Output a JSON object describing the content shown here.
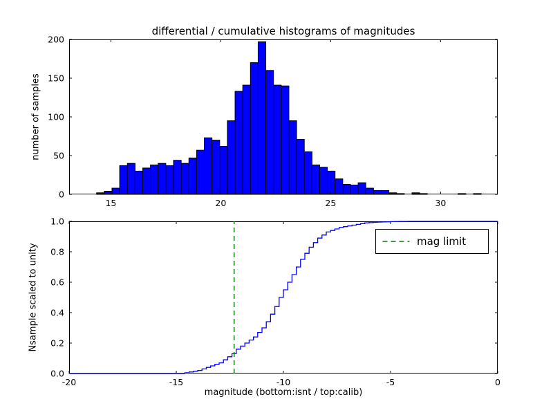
{
  "figure": {
    "background": "#ffffff",
    "frame_color": "#000000"
  },
  "chart_data": [
    {
      "type": "bar",
      "title": "differential / cumulative histograms of magnitudes",
      "ylabel": "number of samples",
      "xlabel": "",
      "xlim": [
        13.1,
        32.6
      ],
      "ylim": [
        0,
        200
      ],
      "xticks": [
        {
          "v": 15,
          "label": "15"
        },
        {
          "v": 20,
          "label": "20"
        },
        {
          "v": 25,
          "label": "25"
        },
        {
          "v": 30,
          "label": "30"
        }
      ],
      "yticks": [
        {
          "v": 0,
          "label": "0"
        },
        {
          "v": 50,
          "label": "50"
        },
        {
          "v": 100,
          "label": "100"
        },
        {
          "v": 150,
          "label": "150"
        },
        {
          "v": 200,
          "label": "200"
        }
      ],
      "bar_color": "#0000ff",
      "bar_edge_color": "#000000",
      "bin_start": 14.35,
      "bin_width": 0.35,
      "counts": [
        2,
        4,
        8,
        37,
        40,
        30,
        34,
        38,
        40,
        37,
        44,
        40,
        47,
        57,
        73,
        70,
        62,
        95,
        133,
        141,
        170,
        197,
        160,
        141,
        140,
        95,
        71,
        55,
        38,
        35,
        30,
        20,
        13,
        12,
        15,
        8,
        5,
        5,
        2,
        1,
        0,
        2,
        1,
        0,
        0,
        0,
        0,
        1,
        0,
        1
      ],
      "grid": false,
      "legend": null
    },
    {
      "type": "line",
      "step": true,
      "title": "",
      "ylabel": "Nsample scaled to unity",
      "xlabel": "magnitude (bottom:isnt / top:calib)",
      "xlim": [
        -20,
        0
      ],
      "ylim": [
        0.0,
        1.0
      ],
      "xticks": [
        {
          "v": -20,
          "label": "-20"
        },
        {
          "v": -15,
          "label": "-15"
        },
        {
          "v": -10,
          "label": "-10"
        },
        {
          "v": -5,
          "label": "-5"
        },
        {
          "v": 0,
          "label": "0"
        }
      ],
      "yticks": [
        {
          "v": 0.0,
          "label": "0.0"
        },
        {
          "v": 0.2,
          "label": "0.2"
        },
        {
          "v": 0.4,
          "label": "0.4"
        },
        {
          "v": 0.6,
          "label": "0.6"
        },
        {
          "v": 0.8,
          "label": "0.8"
        },
        {
          "v": 1.0,
          "label": "1.0"
        }
      ],
      "line_color": "#0000ff",
      "x": [
        -14.6,
        -14.4,
        -14.2,
        -14.0,
        -13.8,
        -13.6,
        -13.4,
        -13.2,
        -13.0,
        -12.8,
        -12.6,
        -12.4,
        -12.2,
        -12.0,
        -11.8,
        -11.6,
        -11.4,
        -11.2,
        -11.0,
        -10.8,
        -10.6,
        -10.4,
        -10.2,
        -10.0,
        -9.8,
        -9.6,
        -9.4,
        -9.2,
        -9.0,
        -8.8,
        -8.6,
        -8.4,
        -8.2,
        -8.0,
        -7.8,
        -7.6,
        -7.4,
        -7.2,
        -7.0,
        -6.8,
        -6.6,
        -6.4,
        -6.2,
        -6.0,
        -5.8,
        -5.6,
        -5.4,
        -5.2,
        -5.0,
        -4.8,
        -4.6,
        -4.4,
        -4.2,
        -4.0
      ],
      "y": [
        0.005,
        0.01,
        0.015,
        0.02,
        0.03,
        0.04,
        0.05,
        0.06,
        0.07,
        0.09,
        0.11,
        0.13,
        0.16,
        0.18,
        0.2,
        0.22,
        0.24,
        0.27,
        0.3,
        0.34,
        0.39,
        0.44,
        0.5,
        0.55,
        0.6,
        0.65,
        0.7,
        0.75,
        0.79,
        0.83,
        0.86,
        0.89,
        0.91,
        0.93,
        0.94,
        0.95,
        0.96,
        0.965,
        0.97,
        0.975,
        0.98,
        0.985,
        0.99,
        0.992,
        0.994,
        0.995,
        0.996,
        0.997,
        0.998,
        0.9985,
        0.999,
        0.9995,
        1.0,
        1.0
      ],
      "vline": {
        "x": -12.3,
        "color": "#008000",
        "style": "dashed",
        "label": "mag limit"
      },
      "grid": false,
      "legend": {
        "position": "upper right",
        "entries": [
          "mag limit"
        ]
      }
    }
  ]
}
